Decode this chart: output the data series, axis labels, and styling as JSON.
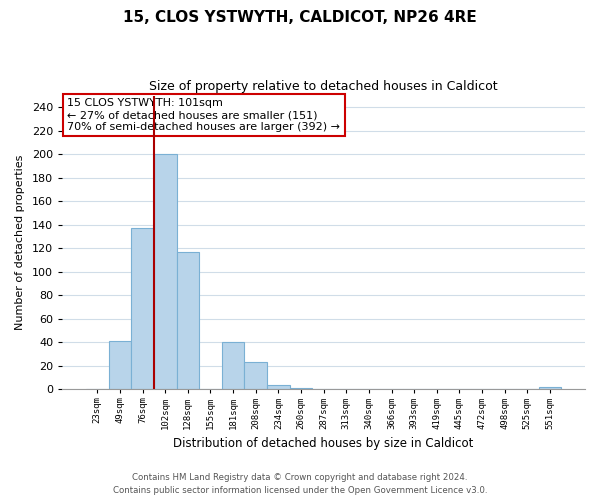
{
  "title": "15, CLOS YSTWYTH, CALDICOT, NP26 4RE",
  "subtitle": "Size of property relative to detached houses in Caldicot",
  "xlabel": "Distribution of detached houses by size in Caldicot",
  "ylabel": "Number of detached properties",
  "bar_labels": [
    "23sqm",
    "49sqm",
    "76sqm",
    "102sqm",
    "128sqm",
    "155sqm",
    "181sqm",
    "208sqm",
    "234sqm",
    "260sqm",
    "287sqm",
    "313sqm",
    "340sqm",
    "366sqm",
    "393sqm",
    "419sqm",
    "445sqm",
    "472sqm",
    "498sqm",
    "525sqm",
    "551sqm"
  ],
  "bar_values": [
    0,
    41,
    137,
    200,
    117,
    0,
    40,
    23,
    4,
    1,
    0,
    0,
    0,
    0,
    0,
    0,
    0,
    0,
    0,
    0,
    2
  ],
  "bar_color": "#b8d4ea",
  "bar_edge_color": "#7ab0d4",
  "ylim": [
    0,
    250
  ],
  "yticks": [
    0,
    20,
    40,
    60,
    80,
    100,
    120,
    140,
    160,
    180,
    200,
    220,
    240
  ],
  "property_line_color": "#aa0000",
  "annotation_title": "15 CLOS YSTWYTH: 101sqm",
  "annotation_line1": "← 27% of detached houses are smaller (151)",
  "annotation_line2": "70% of semi-detached houses are larger (392) →",
  "annotation_box_color": "#ffffff",
  "annotation_box_edge_color": "#cc0000",
  "footer_line1": "Contains HM Land Registry data © Crown copyright and database right 2024.",
  "footer_line2": "Contains public sector information licensed under the Open Government Licence v3.0.",
  "background_color": "#ffffff",
  "grid_color": "#d0dde8"
}
